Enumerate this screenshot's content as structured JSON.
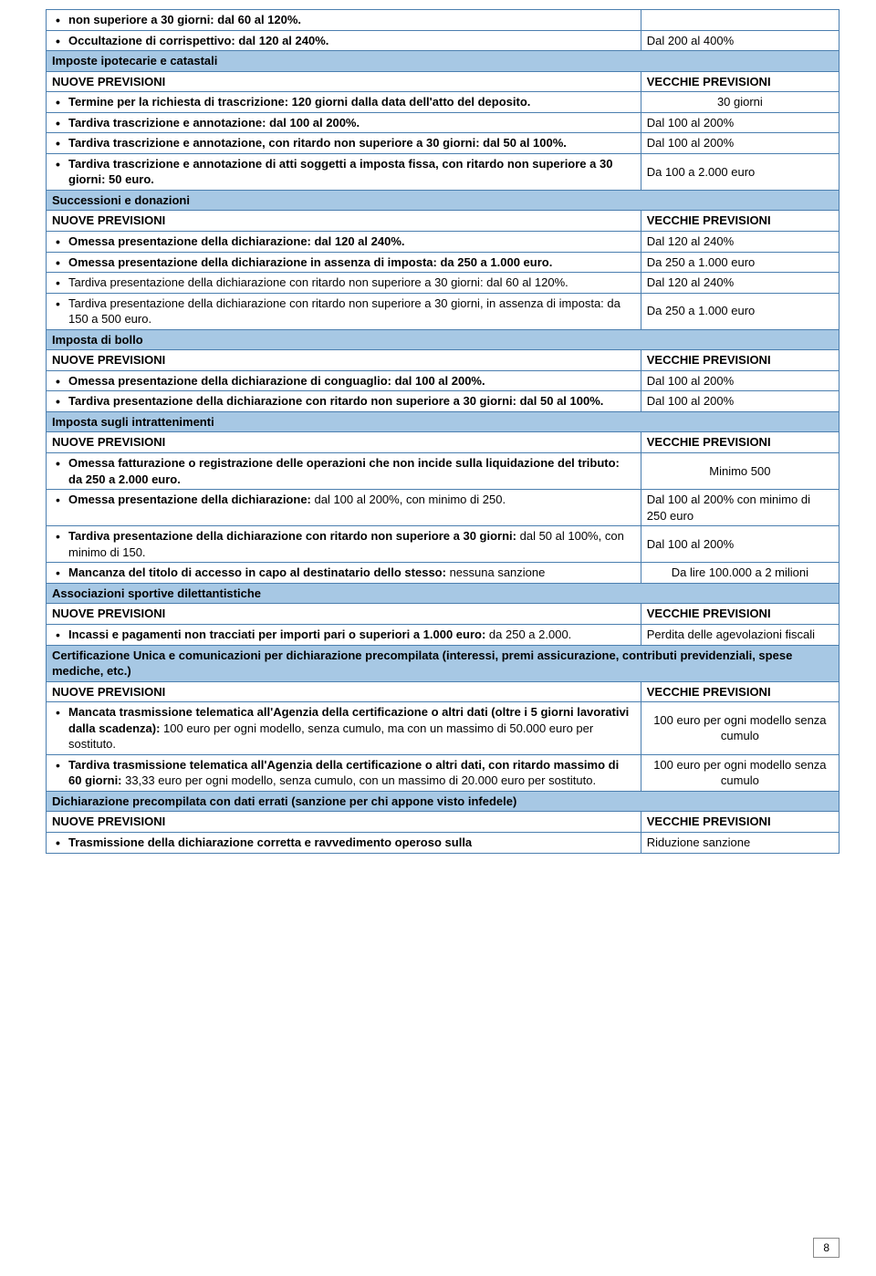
{
  "colors": {
    "border": "#4a7eaf",
    "section_bg": "#a7c8e4",
    "text": "#000000",
    "page_bg": "#ffffff"
  },
  "page_number": "8",
  "labels": {
    "nuove": "NUOVE PREVISIONI",
    "vecchie": "VECCHIE PREVISIONI"
  },
  "rows": {
    "r1a": "non superiore a 30 giorni: dal 60 al 120%.",
    "r2a": "Occultazione di corrispettivo: dal 120 al 240%.",
    "r2b": "Dal 200 al 400%",
    "sec1": "Imposte ipotecarie e catastali",
    "r3a": "Termine per la richiesta di trascrizione: 120 giorni dalla data dell'atto del deposito.",
    "r3b": "30 giorni",
    "r4a": "Tardiva trascrizione e annotazione: dal 100 al 200%.",
    "r4b": "Dal 100 al 200%",
    "r5a": "Tardiva trascrizione e annotazione, con ritardo non superiore a 30 giorni: dal 50 al 100%.",
    "r5b": "Dal 100 al 200%",
    "r6a": "Tardiva trascrizione e annotazione di atti soggetti a imposta fissa, con ritardo non superiore a 30 giorni: 50 euro.",
    "r6b": "Da 100 a 2.000 euro",
    "sec2": "Successioni e donazioni",
    "r7a": "Omessa presentazione della dichiarazione: dal 120 al 240%.",
    "r7b": "Dal 120 al 240%",
    "r8a": "Omessa presentazione della dichiarazione in assenza di imposta: da 250 a 1.000 euro.",
    "r8b": "Da 250 a 1.000 euro",
    "r9a_pre": "Tardiva presentazione della dichiarazione con ritardo non superiore a 30 giorni: ",
    "r9a_suf": "dal 60 al 120%.",
    "r9b": "Dal 120 al 240%",
    "r10a_pre": "Tardiva presentazione della dichiarazione con ritardo non superiore a 30 giorni, in assenza di imposta: ",
    "r10a_suf": "da 150 a 500 euro.",
    "r10b": "Da 250 a 1.000 euro",
    "sec3": "Imposta di bollo",
    "r11a": "Omessa presentazione della dichiarazione di conguaglio: dal 100 al 200%.",
    "r11b": "Dal 100 al 200%",
    "r12a": "Tardiva presentazione della dichiarazione con ritardo non superiore a 30 giorni: dal 50 al 100%.",
    "r12b": "Dal 100 al 200%",
    "sec4": "Imposta sugli intrattenimenti",
    "r13a": "Omessa fatturazione o registrazione delle operazioni che non incide sulla liquidazione del tributo: da 250 a 2.000 euro.",
    "r13b": "Minimo 500",
    "r14a_bold": "Omessa presentazione della dichiarazione: ",
    "r14a_rest": "dal 100 al 200%, con minimo di 250.",
    "r14b": "Dal 100 al 200% con minimo di 250 euro",
    "r15a_bold": "Tardiva presentazione della dichiarazione con ritardo non superiore a 30 giorni: ",
    "r15a_rest": "dal 50 al 100%, con minimo di 150.",
    "r15b": "Dal 100 al 200%",
    "r16a_bold": "Mancanza del titolo di accesso in capo al destinatario dello stesso:",
    "r16a_rest": " nessuna sanzione",
    "r16b": "Da lire 100.000 a 2 milioni",
    "sec5": "Associazioni sportive dilettantistiche",
    "r17a_bold": "Incassi e pagamenti non tracciati per importi pari o superiori a 1.000 euro:",
    "r17a_rest": " da 250 a 2.000.",
    "r17b": "Perdita delle agevolazioni fiscali",
    "sec6": "Certificazione Unica e comunicazioni per dichiarazione precompilata (interessi, premi assicurazione, contributi previdenziali, spese mediche, etc.)",
    "r18a_bold": "Mancata trasmissione telematica all'Agenzia della certificazione o altri dati (oltre i 5 giorni lavorativi dalla scadenza): ",
    "r18a_rest": "100 euro per ogni modello, senza cumulo, ma con un massimo di 50.000 euro per sostituto.",
    "r18b": "100 euro per ogni modello senza cumulo",
    "r19a_bold": "Tardiva trasmissione telematica all'Agenzia della certificazione o altri dati, con ritardo massimo di 60 giorni: ",
    "r19a_rest": "33,33 euro per ogni modello, senza cumulo, con un massimo di 20.000 euro per sostituto.",
    "r19b": "100 euro per ogni modello senza cumulo",
    "sec7": "Dichiarazione precompilata con dati errati (sanzione per chi appone visto infedele)",
    "r20a": "Trasmissione della dichiarazione corretta e ravvedimento operoso sulla",
    "r20b": "Riduzione sanzione"
  }
}
